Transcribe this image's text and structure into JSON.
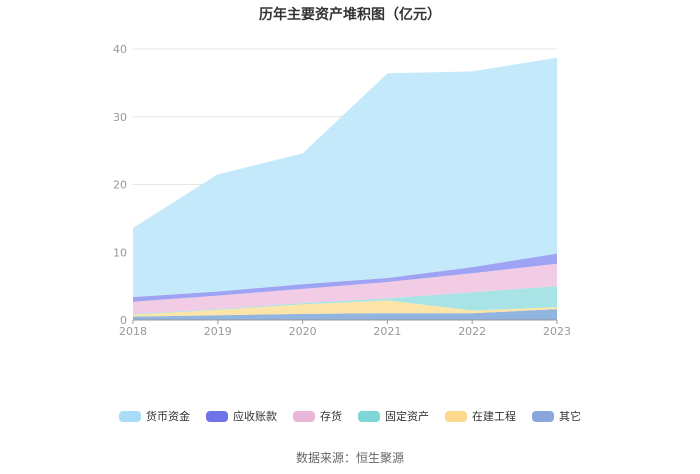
{
  "chart_data": {
    "type": "area",
    "stacked": true,
    "title": "历年主要资产堆积图（亿元）",
    "x": [
      "2018",
      "2019",
      "2020",
      "2021",
      "2022",
      "2023"
    ],
    "ylim": [
      0,
      40
    ],
    "yticks": [
      0,
      10,
      20,
      30,
      40
    ],
    "grid": true,
    "legend_position": "bottom",
    "series": [
      {
        "name": "其它",
        "color": "#91b4e0",
        "legend_color": "#8aa7dc",
        "values": [
          0.5,
          0.7,
          0.9,
          1.0,
          1.0,
          1.6
        ]
      },
      {
        "name": "在建工程",
        "color": "#fde4a8",
        "legend_color": "#fcd98c",
        "values": [
          0.3,
          0.8,
          1.4,
          1.9,
          0.4,
          0.3
        ]
      },
      {
        "name": "固定资产",
        "color": "#a8e4e6",
        "legend_color": "#7fd6d6",
        "values": [
          0.1,
          0.1,
          0.2,
          0.3,
          2.7,
          3.1
        ]
      },
      {
        "name": "存货",
        "color": "#f2cbe5",
        "legend_color": "#e8b6d9",
        "values": [
          1.8,
          2.0,
          2.1,
          2.4,
          2.8,
          3.3
        ]
      },
      {
        "name": "应收账款",
        "color": "#9fa3f3",
        "legend_color": "#6f73e8",
        "values": [
          0.7,
          0.6,
          0.7,
          0.6,
          0.9,
          1.5
        ]
      },
      {
        "name": "货币资金",
        "color": "#c4e9fb",
        "legend_color": "#a9ddf7",
        "values": [
          10.2,
          17.3,
          19.3,
          30.2,
          28.9,
          28.9
        ]
      }
    ]
  },
  "source": "数据来源：恒生聚源"
}
